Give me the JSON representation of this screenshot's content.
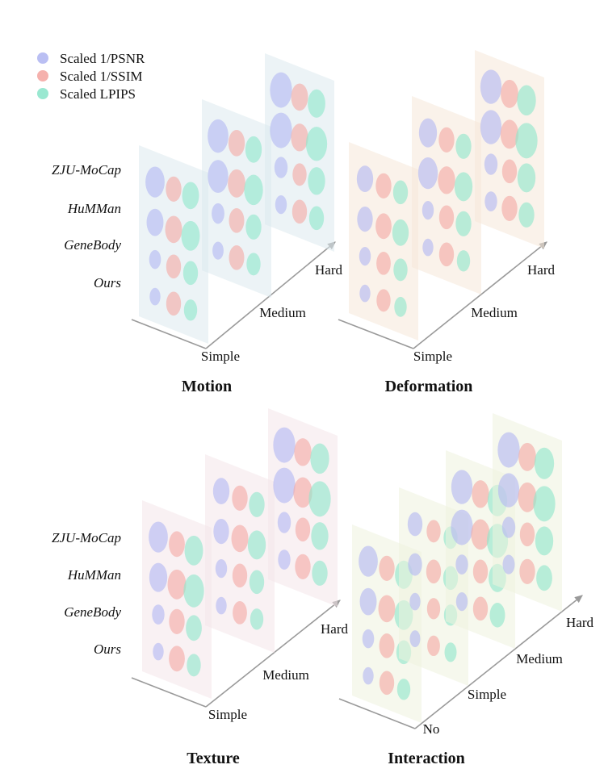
{
  "chart_data": {
    "type": "scatter",
    "legend": {
      "placement": "top-left",
      "entries": [
        {
          "name": "Scaled 1/PSNR",
          "color": "#b3b8f2"
        },
        {
          "name": "Scaled 1/SSIM",
          "color": "#f4a9a4"
        },
        {
          "name": "Scaled LPIPS",
          "color": "#8fe6cc"
        }
      ]
    },
    "datasets": [
      "ZJU-MoCap",
      "HuMMan",
      "GeneBody",
      "Ours"
    ],
    "panels": [
      {
        "title": "Motion",
        "panel_color": "#dde9ef",
        "levels": [
          "Simple",
          "Medium",
          "Hard"
        ],
        "show_datasets": true,
        "values": [
          [
            [
              0.82,
              0.6,
              0.68
            ],
            [
              0.68,
              0.68,
              0.78
            ],
            [
              0.36,
              0.55,
              0.55
            ],
            [
              0.3,
              0.55,
              0.45
            ]
          ],
          [
            [
              0.92,
              0.65,
              0.65
            ],
            [
              0.9,
              0.72,
              0.8
            ],
            [
              0.42,
              0.58,
              0.6
            ],
            [
              0.32,
              0.58,
              0.5
            ]
          ],
          [
            [
              1.0,
              0.68,
              0.72
            ],
            [
              1.0,
              0.7,
              0.95
            ],
            [
              0.45,
              0.5,
              0.7
            ],
            [
              0.35,
              0.55,
              0.55
            ]
          ]
        ]
      },
      {
        "title": "Deformation",
        "panel_color": "#f6e7d8",
        "levels": [
          "Simple",
          "Medium",
          "Hard"
        ],
        "show_datasets": false,
        "values": [
          [
            [
              0.65,
              0.6,
              0.55
            ],
            [
              0.6,
              0.62,
              0.65
            ],
            [
              0.35,
              0.52,
              0.5
            ],
            [
              0.3,
              0.5,
              0.4
            ]
          ],
          [
            [
              0.75,
              0.6,
              0.6
            ],
            [
              0.85,
              0.7,
              0.75
            ],
            [
              0.35,
              0.55,
              0.6
            ],
            [
              0.3,
              0.55,
              0.45
            ]
          ],
          [
            [
              0.95,
              0.72,
              0.8
            ],
            [
              0.95,
              0.75,
              1.0
            ],
            [
              0.45,
              0.55,
              0.75
            ],
            [
              0.4,
              0.6,
              0.6
            ]
          ]
        ]
      },
      {
        "title": "Texture",
        "panel_color": "#f4e6e9",
        "levels": [
          "Simple",
          "Medium",
          "Hard"
        ],
        "show_datasets": true,
        "values": [
          [
            [
              0.82,
              0.62,
              0.78
            ],
            [
              0.75,
              0.78,
              0.9
            ],
            [
              0.4,
              0.6,
              0.62
            ],
            [
              0.3,
              0.62,
              0.5
            ]
          ],
          [
            [
              0.65,
              0.6,
              0.6
            ],
            [
              0.6,
              0.68,
              0.75
            ],
            [
              0.35,
              0.55,
              0.55
            ],
            [
              0.3,
              0.52,
              0.45
            ]
          ],
          [
            [
              1.0,
              0.7,
              0.8
            ],
            [
              1.0,
              0.8,
              1.0
            ],
            [
              0.45,
              0.55,
              0.7
            ],
            [
              0.4,
              0.6,
              0.6
            ]
          ]
        ]
      },
      {
        "title": "Interaction",
        "panel_color": "#eef3df",
        "levels": [
          "No",
          "Simple",
          "Medium",
          "Hard"
        ],
        "show_datasets": false,
        "values": [
          [
            [
              0.82,
              0.6,
              0.72
            ],
            [
              0.68,
              0.68,
              0.78
            ],
            [
              0.36,
              0.58,
              0.55
            ],
            [
              0.3,
              0.55,
              0.45
            ]
          ],
          [
            [
              0.55,
              0.5,
              0.5
            ],
            [
              0.5,
              0.55,
              0.55
            ],
            [
              0.3,
              0.45,
              0.45
            ],
            [
              0.28,
              0.42,
              0.38
            ]
          ],
          [
            [
              0.95,
              0.7,
              0.85
            ],
            [
              1.0,
              0.8,
              0.95
            ],
            [
              0.4,
              0.55,
              0.72
            ],
            [
              0.35,
              0.55,
              0.58
            ]
          ],
          [
            [
              1.0,
              0.72,
              0.85
            ],
            [
              0.95,
              0.78,
              1.0
            ],
            [
              0.45,
              0.55,
              0.75
            ],
            [
              0.38,
              0.6,
              0.62
            ]
          ]
        ]
      }
    ]
  }
}
